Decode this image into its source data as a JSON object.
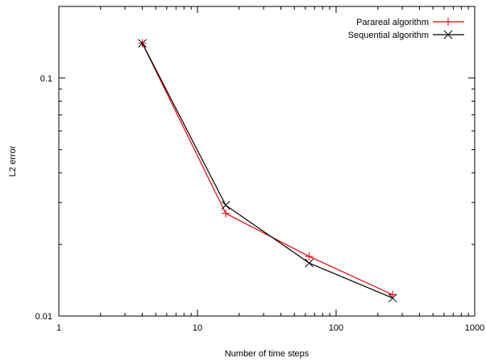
{
  "chart_data": {
    "type": "line",
    "title": "",
    "xlabel": "Number of time steps",
    "ylabel": "L2 error",
    "xscale": "log",
    "yscale": "log",
    "xlim": [
      1,
      1000
    ],
    "ylim": [
      0.01,
      0.2
    ],
    "x_ticks": [
      {
        "value": 1,
        "label": "1"
      },
      {
        "value": 10,
        "label": "10"
      },
      {
        "value": 100,
        "label": "100"
      },
      {
        "value": 1000,
        "label": "1000"
      }
    ],
    "y_ticks": [
      {
        "value": 0.01,
        "label": "0.01"
      },
      {
        "value": 0.1,
        "label": "0.1"
      }
    ],
    "grid": false,
    "legend_position": "top-right",
    "series": [
      {
        "name": "Parareal algorithm",
        "color": "#e8000b",
        "marker": "plus",
        "points": [
          {
            "x": 4,
            "y": 0.14
          },
          {
            "x": 16,
            "y": 0.027
          },
          {
            "x": 64,
            "y": 0.0178
          },
          {
            "x": 256,
            "y": 0.0123
          }
        ]
      },
      {
        "name": "Sequential algorithm",
        "color": "#000000",
        "marker": "cross",
        "points": [
          {
            "x": 4,
            "y": 0.14
          },
          {
            "x": 16,
            "y": 0.0292
          },
          {
            "x": 64,
            "y": 0.0167
          },
          {
            "x": 256,
            "y": 0.0119
          }
        ]
      }
    ]
  }
}
